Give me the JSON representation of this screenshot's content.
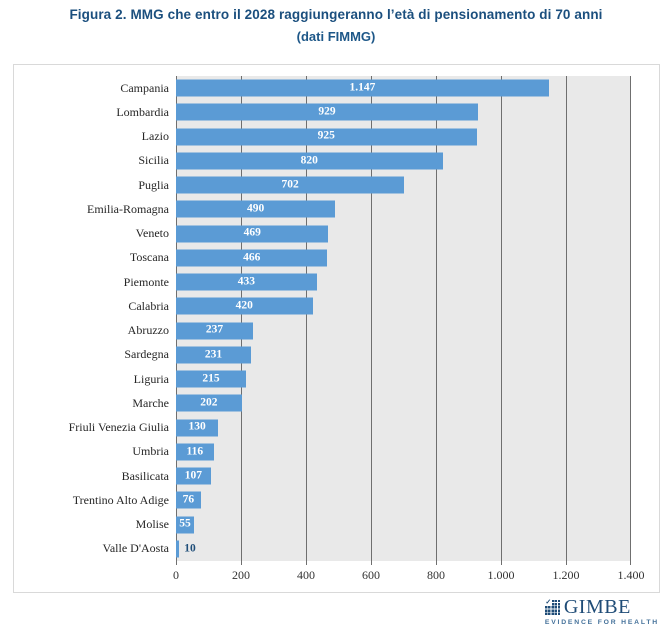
{
  "figure": {
    "title": "Figura 2. MMG che entro il 2028 raggiungeranno l’età di pensionamento di 70 anni",
    "subtitle": "(dati FIMMG)"
  },
  "chart_data": {
    "type": "bar",
    "orientation": "horizontal",
    "title": "Figura 2. MMG che entro il 2028 raggiungeranno l’età di pensionamento di 70 anni (dati FIMMG)",
    "xlabel": "",
    "ylabel": "",
    "xlim": [
      0,
      1400
    ],
    "grid": true,
    "gridline_interval": 200,
    "legend": "none",
    "categories": [
      "Campania",
      "Lombardia",
      "Lazio",
      "Sicilia",
      "Puglia",
      "Emilia-Romagna",
      "Veneto",
      "Toscana",
      "Piemonte",
      "Calabria",
      "Abruzzo",
      "Sardegna",
      "Liguria",
      "Marche",
      "Friuli Venezia Giulia",
      "Umbria",
      "Basilicata",
      "Trentino Alto Adige",
      "Molise",
      "Valle D'Aosta"
    ],
    "values": [
      1147,
      929,
      925,
      820,
      702,
      490,
      469,
      466,
      433,
      420,
      237,
      231,
      215,
      202,
      130,
      116,
      107,
      76,
      55,
      10
    ],
    "items": [
      {
        "label": "Campania",
        "value": 1147,
        "display": "1.147",
        "label_pos": "inside"
      },
      {
        "label": "Lombardia",
        "value": 929,
        "display": "929",
        "label_pos": "inside"
      },
      {
        "label": "Lazio",
        "value": 925,
        "display": "925",
        "label_pos": "inside"
      },
      {
        "label": "Sicilia",
        "value": 820,
        "display": "820",
        "label_pos": "inside"
      },
      {
        "label": "Puglia",
        "value": 702,
        "display": "702",
        "label_pos": "inside"
      },
      {
        "label": "Emilia-Romagna",
        "value": 490,
        "display": "490",
        "label_pos": "inside"
      },
      {
        "label": "Veneto",
        "value": 469,
        "display": "469",
        "label_pos": "inside"
      },
      {
        "label": "Toscana",
        "value": 466,
        "display": "466",
        "label_pos": "inside"
      },
      {
        "label": "Piemonte",
        "value": 433,
        "display": "433",
        "label_pos": "inside"
      },
      {
        "label": "Calabria",
        "value": 420,
        "display": "420",
        "label_pos": "inside"
      },
      {
        "label": "Abruzzo",
        "value": 237,
        "display": "237",
        "label_pos": "inside"
      },
      {
        "label": "Sardegna",
        "value": 231,
        "display": "231",
        "label_pos": "inside"
      },
      {
        "label": "Liguria",
        "value": 215,
        "display": "215",
        "label_pos": "inside"
      },
      {
        "label": "Marche",
        "value": 202,
        "display": "202",
        "label_pos": "inside"
      },
      {
        "label": "Friuli Venezia Giulia",
        "value": 130,
        "display": "130",
        "label_pos": "inside"
      },
      {
        "label": "Umbria",
        "value": 116,
        "display": "116",
        "label_pos": "inside"
      },
      {
        "label": "Basilicata",
        "value": 107,
        "display": "107",
        "label_pos": "inside"
      },
      {
        "label": "Trentino Alto Adige",
        "value": 76,
        "display": "76",
        "label_pos": "inside"
      },
      {
        "label": "Molise",
        "value": 55,
        "display": "55",
        "label_pos": "inside"
      },
      {
        "label": "Valle D'Aosta",
        "value": 10,
        "display": "10",
        "label_pos": "outside"
      }
    ],
    "x_ticks": [
      "0",
      "200",
      "400",
      "600",
      "800",
      "1.000",
      "1.200",
      "1.400"
    ],
    "colors": {
      "bar": "#5B9BD5",
      "plot_background": "#E9E9E9",
      "gridline": "#6F6F6F",
      "label_inside": "#FFFFFF",
      "label_outside": "#1F4E79",
      "category_text": "#262626",
      "axis_text": "#333333"
    }
  },
  "branding": {
    "logo_text": "GIMBE",
    "tagline": "EVIDENCE FOR HEALTH",
    "check_glyph": "✓",
    "logo_color": "#1F4C77"
  }
}
